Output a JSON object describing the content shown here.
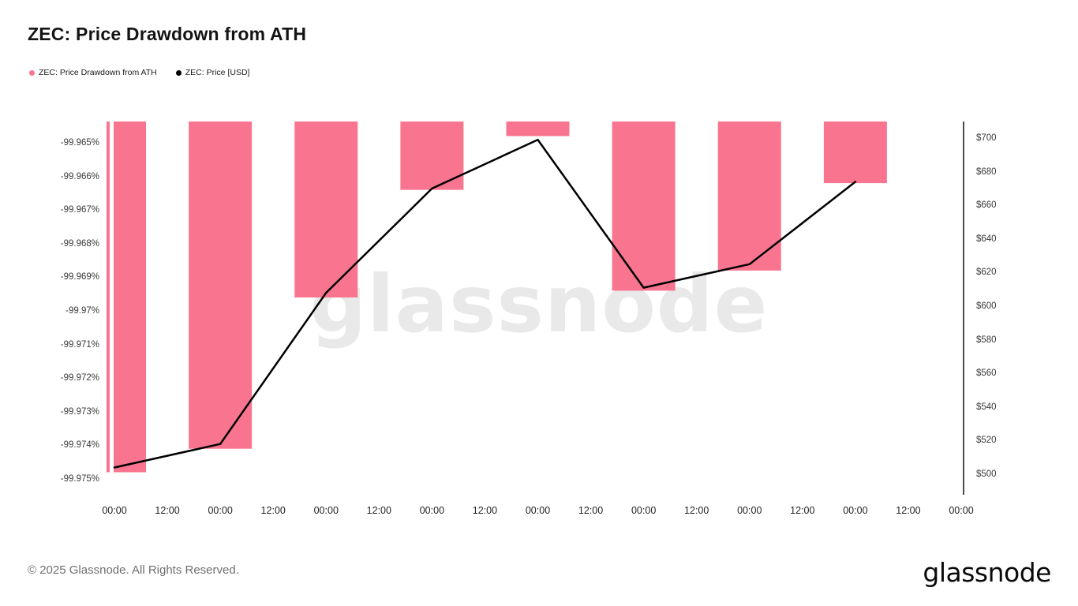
{
  "title": "ZEC: Price Drawdown from ATH",
  "legend": [
    {
      "label": "ZEC: Price Drawdown from ATH",
      "color": "#F9758F"
    },
    {
      "label": "ZEC: Price [USD]",
      "color": "#000000"
    }
  ],
  "watermark": "glassnode",
  "footer": {
    "copyright": "© 2025 Glassnode. All Rights Reserved.",
    "logo": "glassnode"
  },
  "chart_data": {
    "type": "bar",
    "subtype": "bar+line combo, dual y-axes, bars hang from top",
    "title": "ZEC: Price Drawdown from ATH",
    "x_tick_labels": [
      "00:00",
      "12:00",
      "00:00",
      "12:00",
      "00:00",
      "12:00",
      "00:00",
      "12:00",
      "00:00",
      "12:00",
      "00:00",
      "12:00",
      "00:00",
      "12:00",
      "00:00",
      "12:00",
      "00:00"
    ],
    "bar_tick_indices": [
      0,
      2,
      4,
      6,
      8,
      10,
      12,
      14
    ],
    "series": [
      {
        "name": "ZEC: Price Drawdown from ATH",
        "type": "bar",
        "axis": "left",
        "color": "#F9758F",
        "values": [
          -99.9748,
          -99.9741,
          -99.9696,
          -99.9664,
          -99.9648,
          -99.9694,
          -99.9688,
          -99.9662
        ]
      },
      {
        "name": "ZEC: Price [USD]",
        "type": "line",
        "axis": "right",
        "color": "#000000",
        "values": [
          504,
          518,
          608,
          670,
          699,
          611,
          625,
          674
        ]
      }
    ],
    "left_axis": {
      "ticks": [
        "-99.965%",
        "-99.966%",
        "-99.967%",
        "-99.968%",
        "-99.969%",
        "-99.97%",
        "-99.971%",
        "-99.972%",
        "-99.973%",
        "-99.974%",
        "-99.975%"
      ],
      "tick_values": [
        -99.965,
        -99.966,
        -99.967,
        -99.968,
        -99.969,
        -99.97,
        -99.971,
        -99.972,
        -99.973,
        -99.974,
        -99.975
      ]
    },
    "right_axis": {
      "ticks": [
        "$700",
        "$680",
        "$660",
        "$640",
        "$620",
        "$600",
        "$580",
        "$560",
        "$540",
        "$520",
        "$500"
      ],
      "tick_values": [
        700,
        680,
        660,
        640,
        620,
        600,
        580,
        560,
        540,
        520,
        500
      ]
    },
    "grid": false,
    "legend_position": "top-left"
  }
}
